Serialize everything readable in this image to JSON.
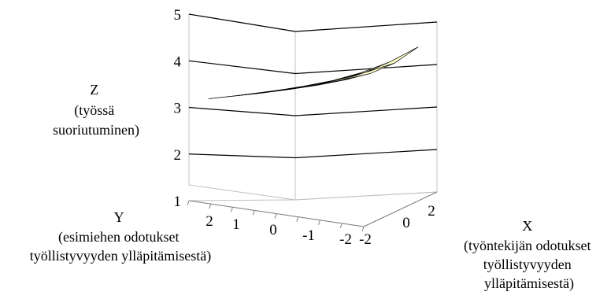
{
  "chart_data": {
    "type": "surface3d",
    "z_axis": {
      "label_lines": [
        "Z",
        "(työssä",
        "suoriutuminen)"
      ],
      "ticks": [
        "1",
        "2",
        "3",
        "4",
        "5"
      ],
      "range": [
        1,
        5
      ]
    },
    "y_axis": {
      "label_lines": [
        "Y",
        "(esimiehen odotukset",
        "työllistyvyyden ylläpitämisestä)"
      ],
      "ticks": [
        "2",
        "1",
        "0",
        "-1",
        "-2"
      ],
      "range": [
        -2,
        2
      ]
    },
    "x_axis": {
      "label_lines": [
        "X",
        "(työntekijän odotukset",
        "työllistyvyyden",
        "ylläpitämisestä)"
      ],
      "ticks": [
        "-2",
        "0",
        "2"
      ],
      "range": [
        -2,
        2
      ]
    },
    "surface": {
      "x": [
        -2,
        -1,
        0,
        1,
        2
      ],
      "y": [
        -2,
        -1,
        0,
        1,
        2
      ],
      "z": [
        [
          3.5,
          3.52,
          3.55,
          3.58,
          3.62
        ],
        [
          3.52,
          3.54,
          3.57,
          3.62,
          3.68
        ],
        [
          3.55,
          3.57,
          3.61,
          3.68,
          3.78
        ],
        [
          3.58,
          3.61,
          3.67,
          3.78,
          3.93
        ],
        [
          3.62,
          3.67,
          3.75,
          3.9,
          4.15
        ]
      ]
    },
    "grid": true,
    "colors": {
      "surface_fill": "#ffffcc",
      "surface_edge": "#000000",
      "grid": "#000000",
      "floor": "#c0c0c0",
      "wall": "#c0c0c0"
    }
  }
}
